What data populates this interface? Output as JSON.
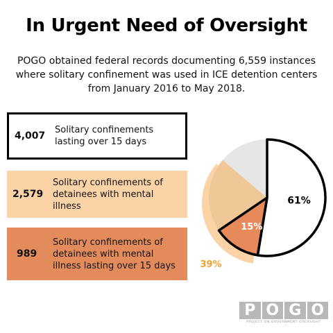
{
  "title": "In Urgent Need of Oversight",
  "subtitle": "POGO obtained federal records documenting 6,559 instances where solitary confinement was used in ICE detention centers from January 2016 to May 2018.",
  "stats": [
    {
      "value": "4,007",
      "label": "Solitary confinements lasting over 15 days",
      "bg": "#ffffff"
    },
    {
      "value": "2,579",
      "label": "Solitary confinements of detainees with mental illness",
      "bg": "#fbd3a6"
    },
    {
      "value": "989",
      "label": "Solitary confinements of detainees with mental illness lasting over 15 days",
      "bg": "#e38b5b"
    }
  ],
  "chart_data": {
    "type": "pie",
    "total": 6559,
    "slices": [
      {
        "label": "61%",
        "value": 61,
        "color": "#ffffff",
        "outline": "#000000"
      },
      {
        "label": "15%",
        "value": 15,
        "color": "#e68a5c"
      },
      {
        "label": "",
        "value": 24,
        "color": "#f0c898"
      },
      {
        "label": "",
        "value": 16,
        "color": "#e6e6e6"
      }
    ],
    "highlight": {
      "label": "39%",
      "value": 39,
      "color": "#fbd3a6",
      "label_color": "#f0a030"
    }
  },
  "logo": {
    "letters": [
      "P",
      "O",
      "G",
      "O"
    ],
    "tagline": "PROJECT ON GOVERNMENT OVERSIGHT"
  }
}
